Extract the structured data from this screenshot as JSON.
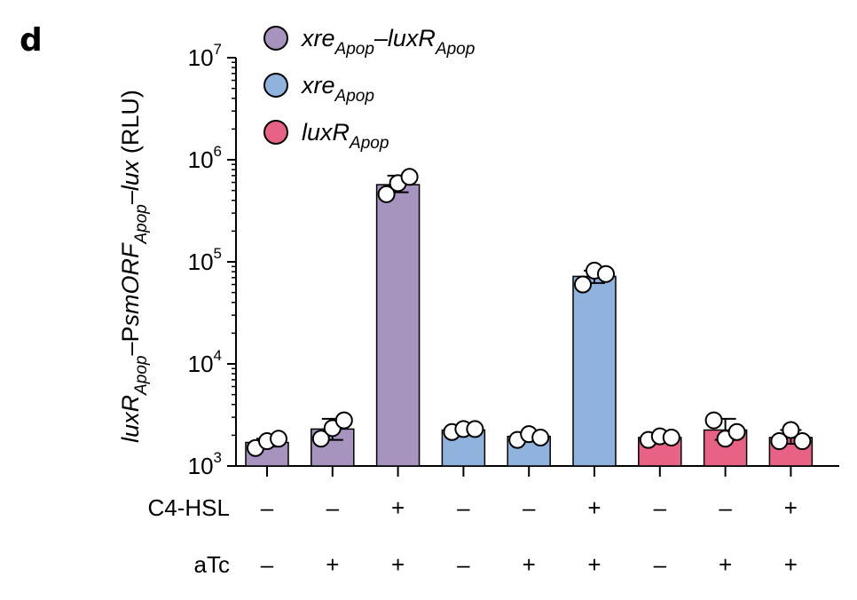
{
  "panel_label": "d",
  "colors": {
    "xre_luxR": "#a794be",
    "xre": "#8fb3dd",
    "luxR": "#e86285",
    "axis": "#000000",
    "point_fill": "#ffffff"
  },
  "legend": [
    {
      "name": "xre",
      "sub": "Apop",
      "dash": "–",
      "name2": "luxR",
      "sub2": "Apop",
      "color_key": "xre_luxR"
    },
    {
      "name": "xre",
      "sub": "Apop",
      "dash": "",
      "name2": "",
      "sub2": "",
      "color_key": "xre"
    },
    {
      "name": "luxR",
      "sub": "Apop",
      "dash": "",
      "name2": "",
      "sub2": "",
      "color_key": "luxR"
    }
  ],
  "y_axis": {
    "label_parts": [
      {
        "text": "luxR",
        "italic": true,
        "sub": false
      },
      {
        "text": "Apop",
        "italic": true,
        "sub": true
      },
      {
        "text": "–P",
        "italic": false,
        "sub": false
      },
      {
        "text": "smORF",
        "italic": true,
        "sub": false
      },
      {
        "text": "Apop",
        "italic": true,
        "sub": true
      },
      {
        "text": "–",
        "italic": false,
        "sub": false
      },
      {
        "text": "lux",
        "italic": true,
        "sub": false
      },
      {
        "text": " (RLU)",
        "italic": false,
        "sub": false
      }
    ],
    "ticks": [
      {
        "base": "10",
        "exp": "3"
      },
      {
        "base": "10",
        "exp": "4"
      },
      {
        "base": "10",
        "exp": "5"
      },
      {
        "base": "10",
        "exp": "6"
      },
      {
        "base": "10",
        "exp": "7"
      }
    ]
  },
  "rows": [
    {
      "label": "C4-HSL",
      "signs": [
        "–",
        "–",
        "+",
        "–",
        "–",
        "+",
        "–",
        "–",
        "+"
      ]
    },
    {
      "label": "aTc",
      "signs": [
        "–",
        "+",
        "+",
        "–",
        "+",
        "+",
        "–",
        "+",
        "+"
      ]
    }
  ],
  "chart_data": {
    "type": "bar",
    "yscale": "log",
    "ylim": [
      1000,
      10000000
    ],
    "series_order": [
      "xre_luxR",
      "xre_luxR",
      "xre_luxR",
      "xre",
      "xre",
      "xre",
      "luxR",
      "luxR",
      "luxR"
    ],
    "bars": [
      {
        "group": "xre_luxR",
        "c4hsl": "–",
        "atc": "–",
        "mean": 1700,
        "err": [
          1550,
          1850
        ],
        "points": [
          1500,
          1750,
          1850
        ]
      },
      {
        "group": "xre_luxR",
        "c4hsl": "–",
        "atc": "+",
        "mean": 2300,
        "err": [
          1800,
          2900
        ],
        "points": [
          1850,
          2350,
          2800
        ]
      },
      {
        "group": "xre_luxR",
        "c4hsl": "+",
        "atc": "+",
        "mean": 570000,
        "err": [
          480000,
          700000
        ],
        "points": [
          460000,
          590000,
          680000
        ]
      },
      {
        "group": "xre",
        "c4hsl": "–",
        "atc": "–",
        "mean": 2250,
        "err": [
          2150,
          2350
        ],
        "points": [
          2150,
          2300,
          2300
        ]
      },
      {
        "group": "xre",
        "c4hsl": "–",
        "atc": "+",
        "mean": 1950,
        "err": [
          1850,
          2050
        ],
        "points": [
          1800,
          2050,
          1900
        ]
      },
      {
        "group": "xre",
        "c4hsl": "+",
        "atc": "+",
        "mean": 72000,
        "err": [
          62000,
          82000
        ],
        "points": [
          60000,
          82000,
          76000
        ]
      },
      {
        "group": "luxR",
        "c4hsl": "–",
        "atc": "–",
        "mean": 1900,
        "err": [
          1800,
          2000
        ],
        "points": [
          1800,
          1950,
          1900
        ]
      },
      {
        "group": "luxR",
        "c4hsl": "–",
        "atc": "+",
        "mean": 2250,
        "err": [
          1800,
          2900
        ],
        "points": [
          2800,
          1850,
          2150
        ]
      },
      {
        "group": "luxR",
        "c4hsl": "+",
        "atc": "+",
        "mean": 1900,
        "err": [
          1650,
          2250
        ],
        "points": [
          1750,
          2250,
          1750
        ]
      }
    ]
  }
}
